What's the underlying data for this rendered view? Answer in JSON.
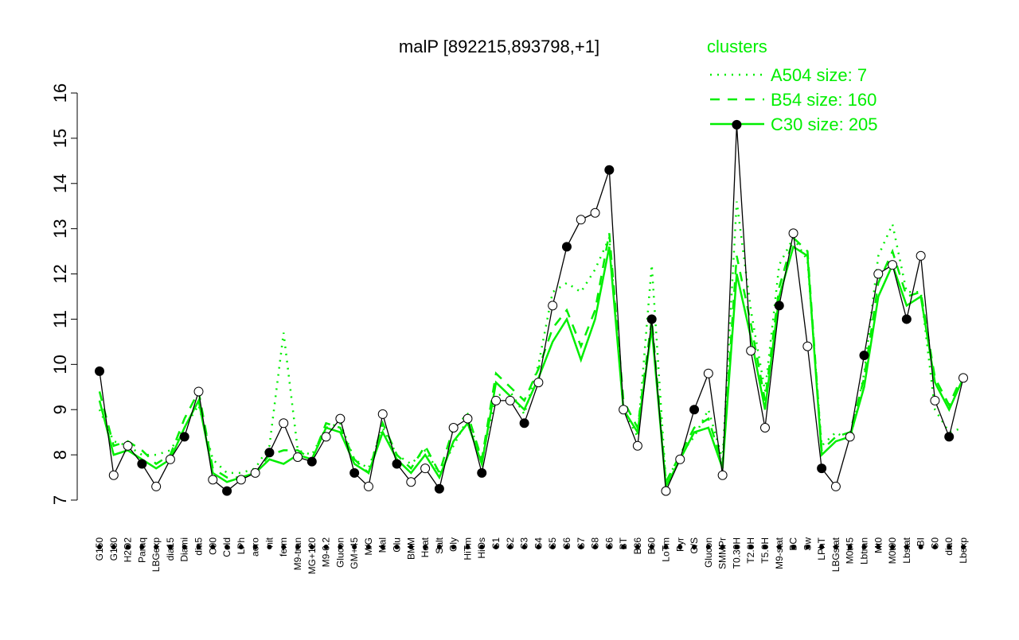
{
  "chart_data": {
    "type": "line",
    "title": "malP [892215,893798,+1]",
    "legend_title": "clusters",
    "categories": [
      "G150",
      "G180",
      "H2O2",
      "Paraq",
      "LBGexp",
      "dia15",
      "Diami",
      "dia5",
      "C90",
      "Cold",
      "LPh",
      "aero",
      "nit",
      "ferm",
      "M9-tran",
      "MG+120",
      "M9-0.2",
      "Glucon",
      "GM+45",
      "M/G",
      "Mal",
      "Glu",
      "BMM",
      "Heat",
      "Salt",
      "Gly",
      "HiTm",
      "HiOs",
      "S1",
      "S2",
      "S3",
      "S4",
      "S5",
      "S6",
      "S7",
      "S8",
      "S6",
      "BT",
      "B36",
      "B60",
      "LoTm",
      "Pyr",
      "G/S",
      "Glucon",
      "SMMPr",
      "T0.30H",
      "T2.0H",
      "T5.0H",
      "M9-stat",
      "BC",
      "Sw",
      "LPhT",
      "LBGstat",
      "M0t45",
      "Lbtran",
      "Mt0",
      "M0t90",
      "Lbstat",
      "BI",
      "S0",
      "dia0",
      "Lbexp"
    ],
    "values": [
      9.85,
      7.55,
      8.2,
      7.8,
      7.3,
      7.9,
      8.4,
      9.4,
      7.45,
      7.2,
      7.45,
      7.6,
      8.05,
      8.7,
      7.95,
      7.85,
      8.4,
      8.8,
      7.6,
      7.3,
      8.9,
      7.8,
      7.4,
      7.7,
      7.25,
      8.6,
      8.8,
      7.6,
      9.2,
      9.2,
      8.7,
      9.6,
      11.3,
      12.6,
      13.2,
      13.35,
      14.3,
      9.0,
      8.2,
      11.0,
      7.2,
      7.9,
      9.0,
      9.8,
      7.55,
      15.3,
      10.3,
      8.6,
      11.3,
      12.9,
      10.4,
      7.7,
      7.3,
      8.4,
      10.2,
      12.0,
      12.2,
      11.0,
      12.4,
      9.2,
      8.4,
      9.7
    ],
    "color": "#000000",
    "series": [
      {
        "name": "A504 size: 7",
        "color": "#00ee00",
        "style": "dotted",
        "values": [
          9.0,
          8.3,
          8.2,
          8.0,
          8.0,
          8.1,
          8.6,
          9.1,
          7.9,
          7.6,
          7.6,
          7.7,
          8.2,
          10.7,
          8.1,
          8.0,
          8.6,
          8.7,
          7.9,
          7.7,
          8.6,
          8.0,
          7.8,
          8.1,
          7.6,
          8.2,
          8.8,
          7.9,
          9.3,
          9.4,
          8.9,
          10.0,
          11.6,
          11.8,
          11.6,
          12.1,
          12.8,
          9.0,
          8.4,
          12.2,
          7.4,
          8.0,
          8.4,
          9.0,
          7.9,
          13.6,
          11.2,
          9.4,
          12.2,
          12.8,
          12.3,
          8.2,
          8.5,
          8.3,
          9.8,
          12.4,
          13.1,
          11.6,
          11.6,
          9.0,
          8.5,
          8.6
        ]
      },
      {
        "name": "B54 size: 160",
        "color": "#00ee00",
        "style": "dashed",
        "values": [
          9.4,
          8.2,
          8.3,
          8.1,
          7.8,
          8.0,
          8.8,
          9.4,
          7.7,
          7.5,
          7.5,
          7.6,
          8.0,
          8.1,
          8.1,
          7.9,
          8.7,
          8.6,
          7.9,
          7.6,
          8.7,
          8.0,
          7.7,
          8.2,
          7.6,
          8.6,
          8.9,
          7.9,
          9.8,
          9.5,
          9.2,
          9.9,
          10.8,
          11.2,
          10.4,
          11.2,
          12.9,
          9.2,
          8.6,
          11.0,
          7.4,
          8.0,
          8.6,
          8.8,
          7.8,
          12.4,
          10.9,
          9.2,
          11.7,
          12.8,
          12.5,
          8.1,
          8.4,
          8.5,
          9.7,
          11.8,
          12.5,
          11.5,
          11.6,
          9.7,
          9.1,
          9.8
        ]
      },
      {
        "name": "C30 size: 205",
        "color": "#00ee00",
        "style": "solid",
        "values": [
          9.2,
          8.0,
          8.1,
          7.9,
          7.7,
          7.9,
          8.6,
          9.2,
          7.6,
          7.4,
          7.5,
          7.6,
          7.9,
          7.8,
          8.0,
          7.9,
          8.6,
          8.5,
          7.8,
          7.6,
          8.5,
          7.9,
          7.6,
          8.0,
          7.5,
          8.3,
          8.7,
          7.8,
          9.6,
          9.3,
          9.0,
          9.7,
          10.5,
          11.0,
          10.1,
          11.0,
          12.6,
          9.0,
          8.5,
          10.8,
          7.3,
          7.9,
          8.5,
          8.6,
          7.7,
          12.0,
          10.6,
          9.0,
          11.5,
          12.6,
          12.4,
          8.0,
          8.3,
          8.4,
          9.5,
          11.5,
          12.2,
          11.3,
          11.5,
          9.6,
          9.0,
          9.7
        ]
      }
    ],
    "ylim": [
      7,
      16
    ],
    "yticks": [
      7,
      8,
      9,
      10,
      11,
      12,
      13,
      14,
      15,
      16
    ]
  }
}
